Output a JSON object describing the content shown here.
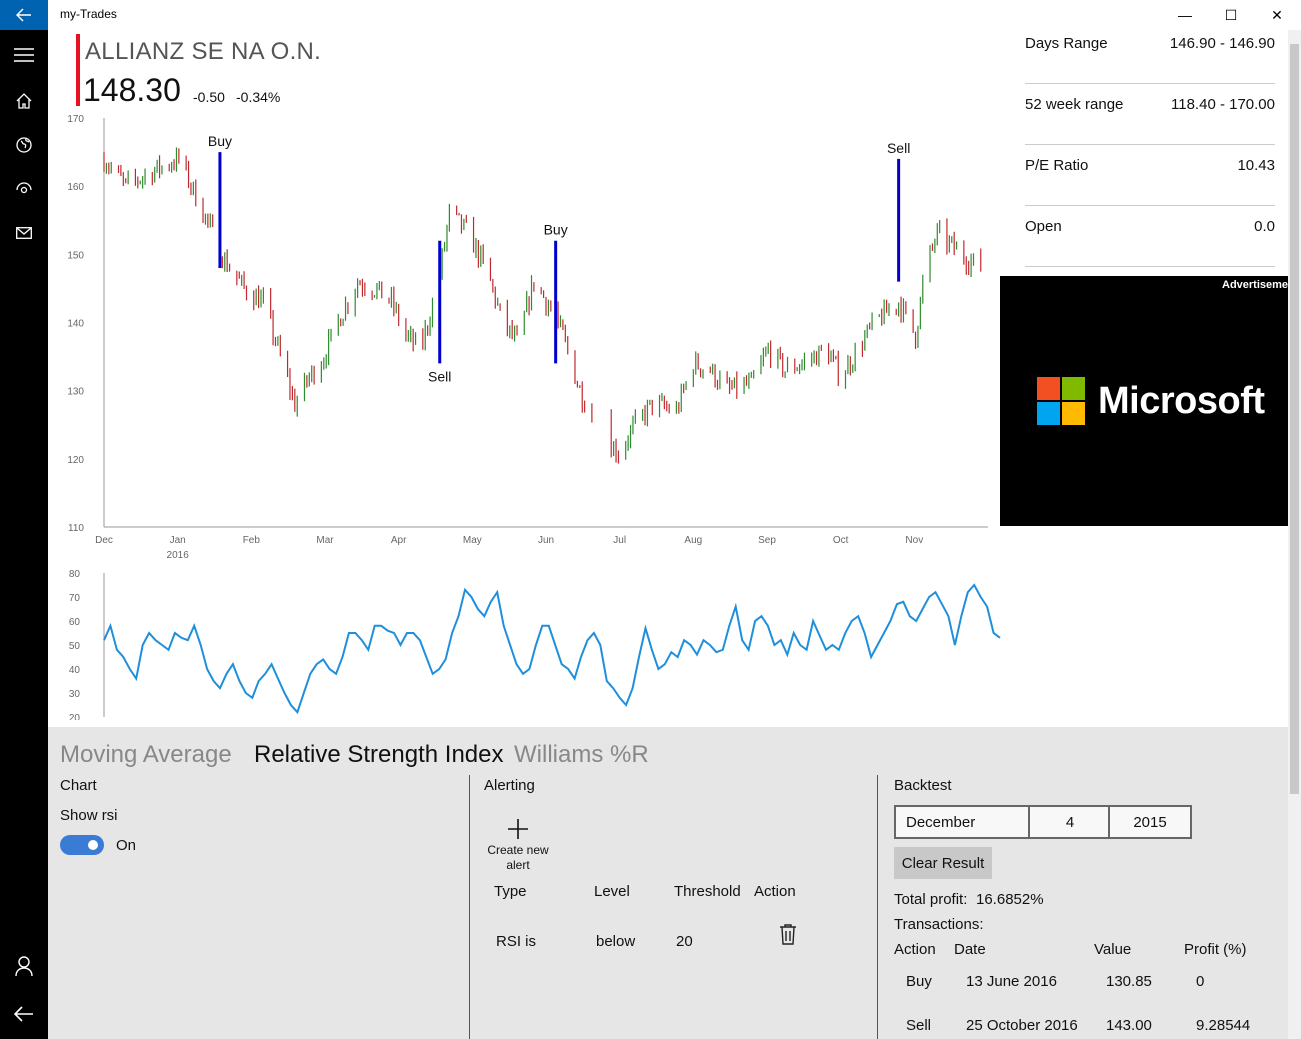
{
  "app": {
    "title": "my-Trades"
  },
  "nav": {
    "icons": [
      "back-arrow-icon",
      "hamburger-menu-icon",
      "home-icon",
      "globe-icon",
      "watch-icon",
      "mail-icon",
      "account-icon",
      "back-arrow-icon"
    ]
  },
  "window": {
    "minimize": "—",
    "maximize": "☐",
    "close": "✕"
  },
  "stock": {
    "name": "ALLIANZ SE NA O.N.",
    "price": "148.30",
    "change": "-0.50",
    "change_pct": "-0.34%",
    "accent_color": "#e81123"
  },
  "stats": [
    {
      "label": "Days Range",
      "value": "146.90 - 146.90"
    },
    {
      "label": "52 week range",
      "value": "118.40 - 170.00"
    },
    {
      "label": "P/E Ratio",
      "value": "10.43"
    },
    {
      "label": "Open",
      "value": "0.0"
    }
  ],
  "ad": {
    "label": "Advertisement",
    "brand": "Microsoft"
  },
  "chart_data": [
    {
      "type": "candlestick",
      "ylim": [
        110,
        170
      ],
      "yticks": [
        110,
        120,
        130,
        140,
        150,
        160,
        170
      ],
      "xticks": [
        "Dec",
        "Jan",
        "Feb",
        "Mar",
        "Apr",
        "May",
        "Jun",
        "Jul",
        "Aug",
        "Sep",
        "Oct",
        "Nov"
      ],
      "xtick_year": "2016",
      "colors": {
        "up": "#2e8b2e",
        "down": "#c0282d",
        "signal": "#0000cc"
      },
      "close_path": [
        [
          "2015-12-01",
          164
        ],
        [
          "2015-12-10",
          160
        ],
        [
          "2015-12-20",
          162
        ],
        [
          "2016-01-01",
          164
        ],
        [
          "2016-01-10",
          157
        ],
        [
          "2016-01-20",
          149
        ],
        [
          "2016-01-28",
          145
        ],
        [
          "2016-02-05",
          143
        ],
        [
          "2016-02-12",
          135
        ],
        [
          "2016-02-18",
          128
        ],
        [
          "2016-02-24",
          132
        ],
        [
          "2016-03-01",
          135
        ],
        [
          "2016-03-08",
          141
        ],
        [
          "2016-03-15",
          146
        ],
        [
          "2016-03-22",
          145
        ],
        [
          "2016-03-29",
          143
        ],
        [
          "2016-04-04",
          138
        ],
        [
          "2016-04-10",
          136
        ],
        [
          "2016-04-17",
          145
        ],
        [
          "2016-04-22",
          156
        ],
        [
          "2016-04-30",
          153
        ],
        [
          "2016-05-08",
          147
        ],
        [
          "2016-05-14",
          140
        ],
        [
          "2016-05-20",
          137
        ],
        [
          "2016-05-27",
          146
        ],
        [
          "2016-06-03",
          142
        ],
        [
          "2016-06-08",
          138
        ],
        [
          "2016-06-15",
          130
        ],
        [
          "2016-06-25",
          123
        ],
        [
          "2016-07-01",
          121
        ],
        [
          "2016-07-08",
          125
        ],
        [
          "2016-07-15",
          128
        ],
        [
          "2016-07-25",
          127
        ],
        [
          "2016-08-01",
          134
        ],
        [
          "2016-08-08",
          133
        ],
        [
          "2016-08-15",
          130
        ],
        [
          "2016-08-25",
          131
        ],
        [
          "2016-09-01",
          136
        ],
        [
          "2016-09-08",
          133
        ],
        [
          "2016-09-15",
          134
        ],
        [
          "2016-09-25",
          136
        ],
        [
          "2016-10-01",
          132
        ],
        [
          "2016-10-08",
          136
        ],
        [
          "2016-10-15",
          140
        ],
        [
          "2016-10-25",
          143
        ],
        [
          "2016-11-01",
          138
        ],
        [
          "2016-11-05",
          148
        ],
        [
          "2016-11-10",
          153
        ],
        [
          "2016-11-20",
          150
        ],
        [
          "2016-11-28",
          148
        ]
      ],
      "annotations": [
        {
          "label": "Buy",
          "date": "2016-01-18",
          "from": 148,
          "to": 165
        },
        {
          "label": "Sell",
          "date": "2016-04-18",
          "from": 134,
          "to": 152
        },
        {
          "label": "Buy",
          "date": "2016-06-05",
          "from": 134,
          "to": 152
        },
        {
          "label": "Sell",
          "date": "2016-10-25",
          "from": 146,
          "to": 164
        }
      ]
    },
    {
      "type": "line",
      "ylim": [
        20,
        80
      ],
      "yticks": [
        20,
        30,
        40,
        50,
        60,
        70,
        80
      ],
      "color": "#1f8fdc",
      "values": [
        52,
        58,
        48,
        45,
        40,
        36,
        50,
        55,
        52,
        50,
        48,
        55,
        53,
        52,
        58,
        50,
        40,
        35,
        32,
        38,
        42,
        35,
        30,
        28,
        35,
        38,
        42,
        36,
        30,
        25,
        22,
        30,
        38,
        42,
        44,
        40,
        38,
        45,
        55,
        55,
        52,
        48,
        58,
        58,
        56,
        55,
        50,
        55,
        55,
        52,
        45,
        38,
        40,
        44,
        55,
        62,
        73,
        70,
        65,
        62,
        68,
        72,
        58,
        50,
        42,
        38,
        40,
        50,
        58,
        58,
        50,
        42,
        40,
        36,
        45,
        52,
        55,
        50,
        35,
        32,
        28,
        25,
        32,
        45,
        57,
        48,
        40,
        42,
        47,
        45,
        52,
        50,
        46,
        52,
        50,
        47,
        48,
        58,
        66,
        52,
        48,
        60,
        62,
        58,
        50,
        52,
        46,
        55,
        50,
        48,
        60,
        54,
        48,
        50,
        48,
        55,
        60,
        62,
        55,
        45,
        50,
        55,
        60,
        67,
        68,
        62,
        60,
        65,
        70,
        72,
        67,
        62,
        50,
        62,
        72,
        75,
        70,
        66,
        55,
        53
      ]
    }
  ],
  "tabs": [
    "Moving Average",
    "Relative Strength Index",
    "Williams %R"
  ],
  "selected_tab": 1,
  "chart_section": {
    "heading": "Chart",
    "show_label": "Show rsi",
    "toggle_state": "On"
  },
  "alerting": {
    "heading": "Alerting",
    "create_label": "Create new alert",
    "headers": [
      "Type",
      "Level",
      "Threshold",
      "Action"
    ],
    "rows": [
      {
        "type": "RSI is",
        "level": "below",
        "threshold": "20"
      }
    ]
  },
  "backtest": {
    "heading": "Backtest",
    "month": "December",
    "day": "4",
    "year": "2015",
    "clear_label": "Clear Result",
    "total_profit_label": "Total profit:",
    "total_profit_value": "16.6852%",
    "transactions_label": "Transactions:",
    "headers": [
      "Action",
      "Date",
      "Value",
      "Profit (%)"
    ],
    "rows": [
      {
        "action": "Buy",
        "date": "13 June 2016",
        "value": "130.85",
        "profit": "0"
      },
      {
        "action": "Sell",
        "date": "25 October 2016",
        "value": "143.00",
        "profit": "9.28544"
      }
    ]
  }
}
